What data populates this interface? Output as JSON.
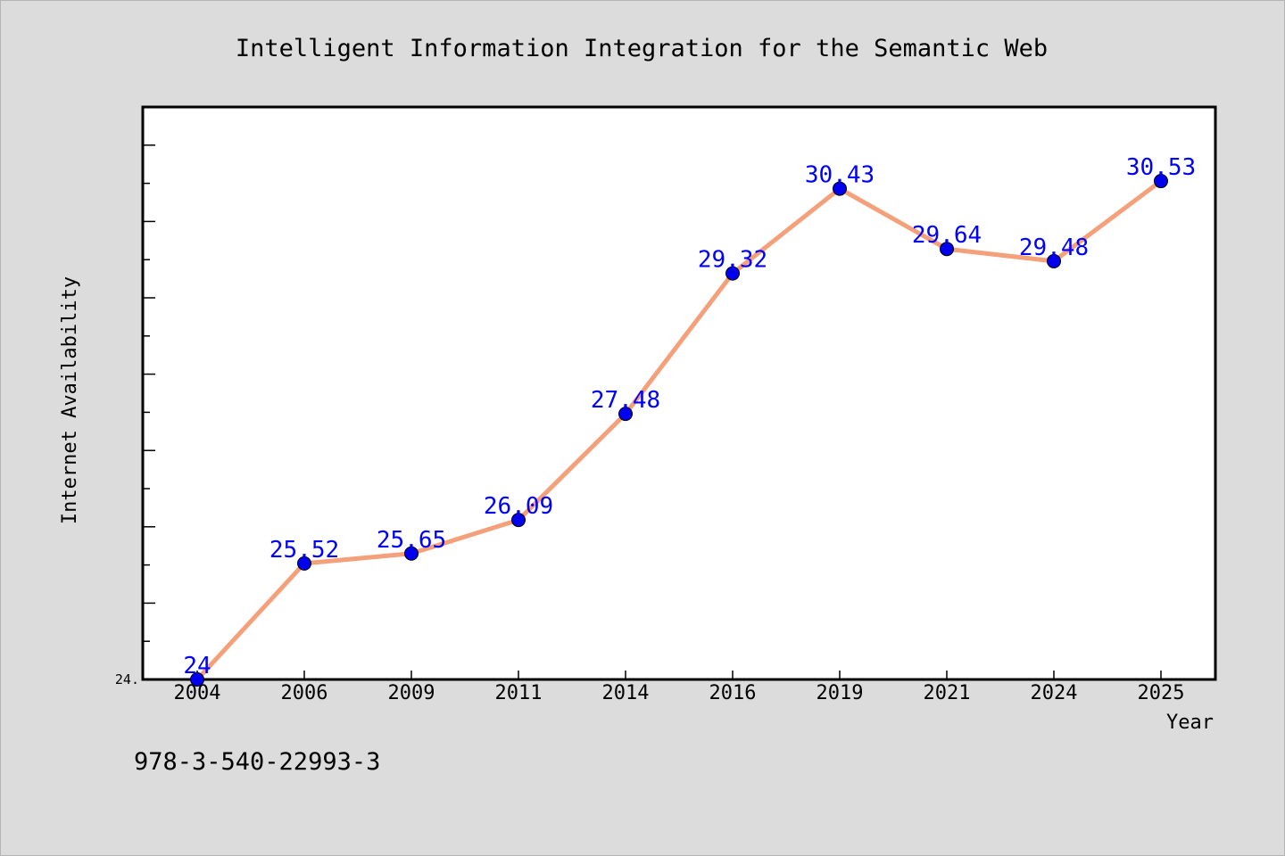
{
  "chart_data": {
    "type": "line",
    "title": "Intelligent Information Integration for the Semantic Web",
    "xlabel": "Year",
    "ylabel": "Internet Availability",
    "categories": [
      "2004",
      "2006",
      "2009",
      "2011",
      "2014",
      "2016",
      "2019",
      "2021",
      "2024",
      "2025"
    ],
    "series": [
      {
        "values": [
          24.0,
          25.52,
          25.65,
          26.09,
          27.48,
          29.32,
          30.43,
          29.64,
          29.48,
          30.53
        ]
      }
    ],
    "data_labels": [
      "24",
      "25.52",
      "25.65",
      "26.09",
      "27.48",
      "29.32",
      "30.43",
      "29.64",
      "29.48",
      "30.53"
    ],
    "ylim": [
      24.0,
      31.5
    ],
    "ytick_label": "24.",
    "grid": false,
    "legend": "none",
    "colors": {
      "line": "#f4a07a",
      "marker": "#0000ee",
      "label": "#0000ff",
      "background": "#dcdcdc",
      "plot_background": "#ffffff"
    }
  },
  "footer": {
    "isbn": "978-3-540-22993-3"
  }
}
